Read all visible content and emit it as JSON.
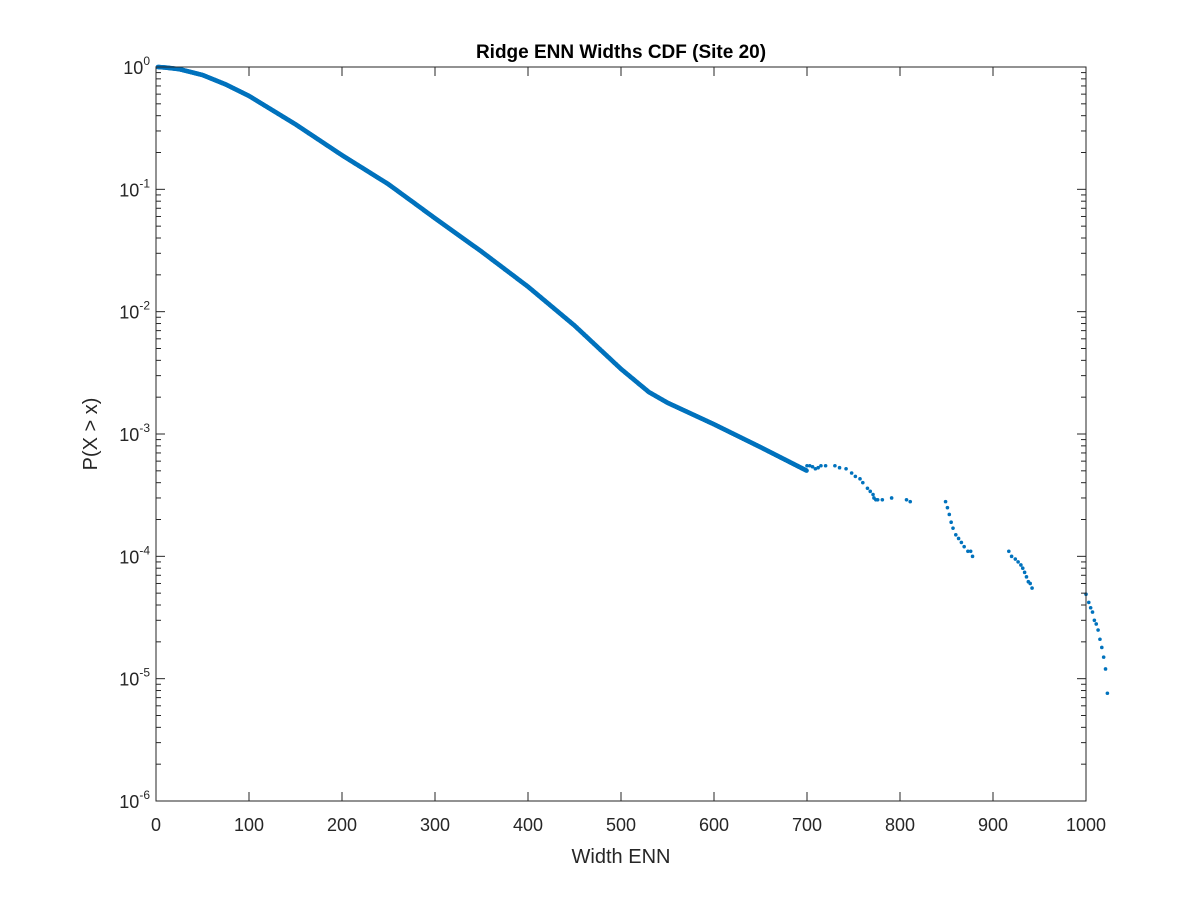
{
  "colors": {
    "series": "#0072bd",
    "axes": "#262626",
    "background": "#ffffff"
  },
  "chart_data": {
    "type": "scatter",
    "title": "Ridge ENN Widths CDF (Site 20)",
    "xlabel": "Width ENN",
    "ylabel": "P(X > x)",
    "xlim": [
      0,
      1000
    ],
    "ylim": [
      1e-06,
      1
    ],
    "yscale": "log",
    "grid": false,
    "legend": "none",
    "xticks": [
      0,
      100,
      200,
      300,
      400,
      500,
      600,
      700,
      800,
      900,
      1000
    ],
    "xtick_labels": [
      "0",
      "100",
      "200",
      "300",
      "400",
      "500",
      "600",
      "700",
      "800",
      "900",
      "1000"
    ],
    "yticks": [
      1e-06,
      1e-05,
      0.0001,
      0.001,
      0.01,
      0.1,
      1
    ],
    "ytick_labels": [
      {
        "base": "10",
        "exp": "-6"
      },
      {
        "base": "10",
        "exp": "-5"
      },
      {
        "base": "10",
        "exp": "-4"
      },
      {
        "base": "10",
        "exp": "-3"
      },
      {
        "base": "10",
        "exp": "-2"
      },
      {
        "base": "10",
        "exp": "-1"
      },
      {
        "base": "10",
        "exp": "0"
      }
    ],
    "series": [
      {
        "dense_curve": [
          [
            2,
            1.0
          ],
          [
            10,
            0.99
          ],
          [
            25,
            0.96
          ],
          [
            50,
            0.86
          ],
          [
            75,
            0.72
          ],
          [
            100,
            0.58
          ],
          [
            150,
            0.34
          ],
          [
            200,
            0.19
          ],
          [
            250,
            0.11
          ],
          [
            300,
            0.058
          ],
          [
            350,
            0.031
          ],
          [
            400,
            0.016
          ],
          [
            450,
            0.0077
          ],
          [
            500,
            0.0034
          ],
          [
            530,
            0.0022
          ],
          [
            550,
            0.0018
          ],
          [
            600,
            0.0012
          ],
          [
            650,
            0.00078
          ],
          [
            700,
            0.0005
          ]
        ],
        "tail_points": [
          [
            700,
            0.00055
          ],
          [
            703,
            0.00055
          ],
          [
            706,
            0.00054
          ],
          [
            709,
            0.00052
          ],
          [
            712,
            0.00053
          ],
          [
            715,
            0.00055
          ],
          [
            720,
            0.00055
          ],
          [
            730,
            0.00055
          ],
          [
            735,
            0.00053
          ],
          [
            742,
            0.00052
          ],
          [
            748,
            0.00048
          ],
          [
            752,
            0.00045
          ],
          [
            757,
            0.00043
          ],
          [
            760,
            0.0004
          ],
          [
            765,
            0.00036
          ],
          [
            768,
            0.00034
          ],
          [
            771,
            0.00032
          ],
          [
            772,
            0.0003
          ],
          [
            774,
            0.00029
          ],
          [
            776,
            0.00029
          ],
          [
            781,
            0.00029
          ],
          [
            791,
            0.0003
          ],
          [
            807,
            0.00029
          ],
          [
            811,
            0.00028
          ],
          [
            849,
            0.00028
          ],
          [
            851,
            0.00025
          ],
          [
            853,
            0.00022
          ],
          [
            855,
            0.00019
          ],
          [
            857,
            0.00017
          ],
          [
            860,
            0.00015
          ],
          [
            863,
            0.00014
          ],
          [
            866,
            0.00013
          ],
          [
            869,
            0.00012
          ],
          [
            873,
            0.00011
          ],
          [
            876,
            0.00011
          ],
          [
            878,
            0.0001
          ],
          [
            917,
            0.00011
          ],
          [
            920,
            0.0001
          ],
          [
            924,
            9.5e-05
          ],
          [
            927,
            9e-05
          ],
          [
            930,
            8.5e-05
          ],
          [
            932,
            8e-05
          ],
          [
            934,
            7.4e-05
          ],
          [
            936,
            6.8e-05
          ],
          [
            938,
            6.2e-05
          ],
          [
            940,
            6e-05
          ],
          [
            942,
            5.5e-05
          ],
          [
            1000,
            4.9e-05
          ],
          [
            1003,
            4.2e-05
          ],
          [
            1005,
            3.8e-05
          ],
          [
            1007,
            3.5e-05
          ],
          [
            1009,
            3e-05
          ],
          [
            1011,
            2.8e-05
          ],
          [
            1013,
            2.5e-05
          ],
          [
            1015,
            2.1e-05
          ],
          [
            1017,
            1.8e-05
          ],
          [
            1019,
            1.5e-05
          ],
          [
            1021,
            1.2e-05
          ],
          [
            1023,
            7.6e-06
          ]
        ]
      }
    ]
  }
}
